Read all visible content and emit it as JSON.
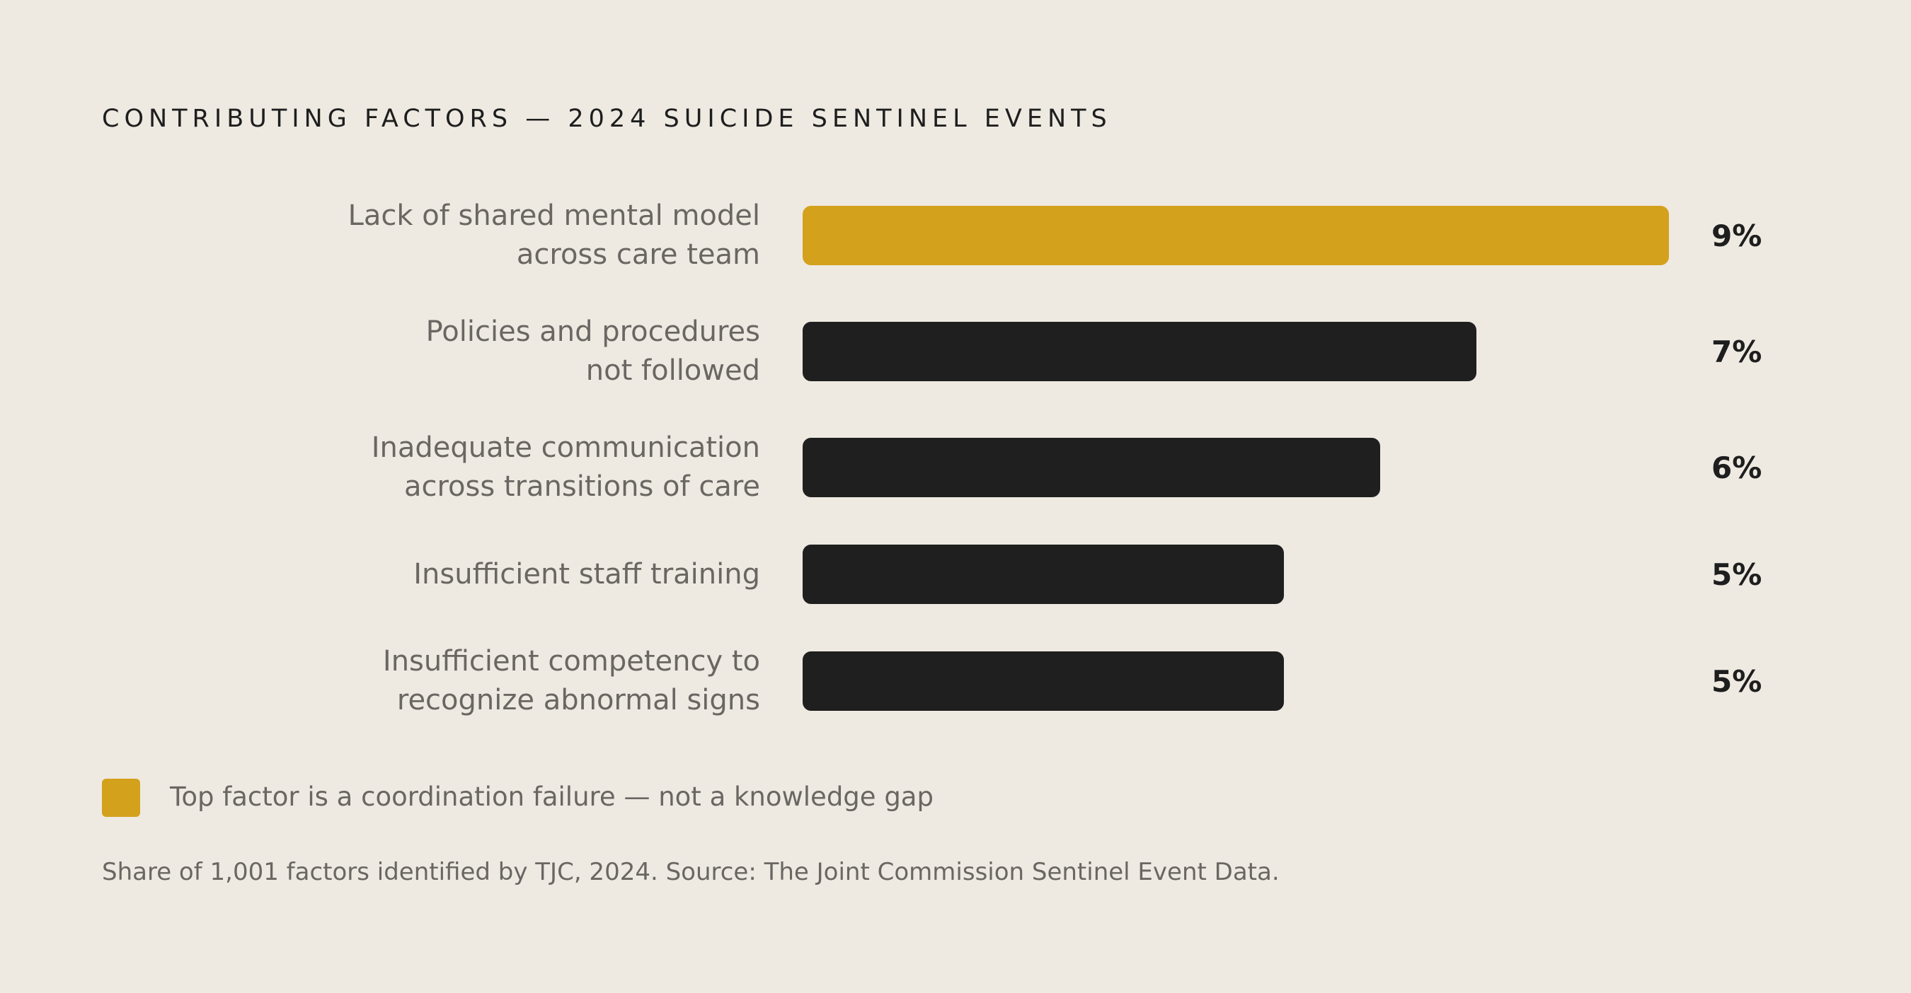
{
  "chart_data": {
    "type": "bar",
    "orientation": "horizontal",
    "title": "CONTRIBUTING FACTORS — 2024 SUICIDE SENTINEL EVENTS",
    "categories": [
      [
        "Lack of shared mental model",
        "across care team"
      ],
      [
        "Policies and procedures",
        "not followed"
      ],
      [
        "Inadequate communication",
        "across transitions of care"
      ],
      [
        "Insufficient staff training"
      ],
      [
        "Insufficient competency to",
        "recognize abnormal signs"
      ]
    ],
    "values": [
      9,
      7,
      6,
      5,
      5
    ],
    "value_labels": [
      "9%",
      "7%",
      "6%",
      "5%",
      "5%"
    ],
    "unit": "%",
    "xlim": [
      0,
      9
    ],
    "highlight_index": 0,
    "colors": {
      "highlight": "#D4A11C",
      "default": "#1F1F1F"
    },
    "grid": false
  },
  "legend": {
    "text": "Top factor is a coordination failure — not a knowledge gap",
    "color": "#D4A11C"
  },
  "note": "Share of 1,001 factors identified by TJC, 2024. Source: The Joint Commission Sentinel Event Data."
}
